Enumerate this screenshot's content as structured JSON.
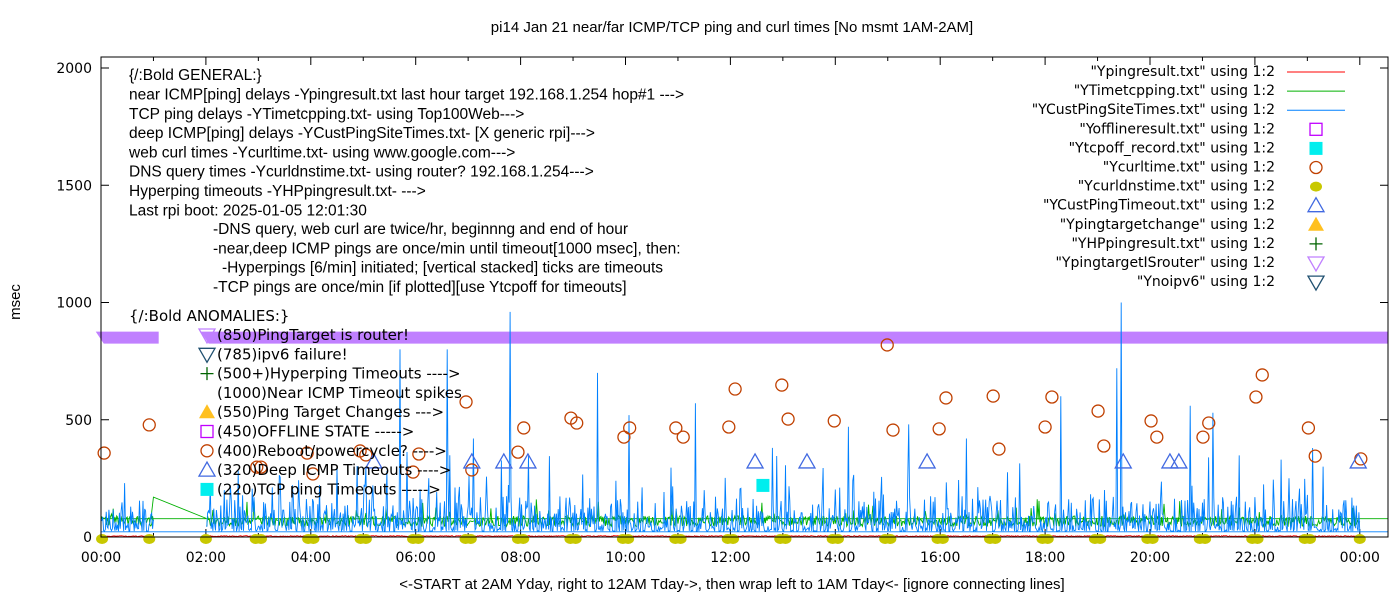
{
  "chart_data": {
    "type": "line",
    "title": "pi14 Jan 21  near/far ICMP/TCP ping and curl times [No msmt 1AM-2AM]",
    "xlabel": "<-START at 2AM Yday, right to 12AM Tday->, then wrap left to 1AM Tday<- [ignore connecting lines]",
    "ylabel": "msec",
    "xlim_hours": [
      0,
      24.53
    ],
    "ylim": [
      0,
      2000
    ],
    "y_ticks": [
      {
        "v": 0,
        "label": "0"
      },
      {
        "v": 500,
        "label": "500"
      },
      {
        "v": 1000,
        "label": "1000"
      },
      {
        "v": 1500,
        "label": "1500"
      },
      {
        "v": 2000,
        "label": "2000"
      }
    ],
    "x_ticks": [
      {
        "h": 0,
        "label": "00:00"
      },
      {
        "h": 2,
        "label": "02:00"
      },
      {
        "h": 4,
        "label": "04:00"
      },
      {
        "h": 6,
        "label": "06:00"
      },
      {
        "h": 8,
        "label": "08:00"
      },
      {
        "h": 10,
        "label": "10:00"
      },
      {
        "h": 12,
        "label": "12:00"
      },
      {
        "h": 14,
        "label": "14:00"
      },
      {
        "h": 16,
        "label": "16:00"
      },
      {
        "h": 18,
        "label": "18:00"
      },
      {
        "h": 20,
        "label": "20:00"
      },
      {
        "h": 22,
        "label": "22:00"
      },
      {
        "h": 24,
        "label": "00:00"
      }
    ],
    "legend": {
      "placement": "top-right",
      "entries": [
        {
          "label": "\"Ypingresult.txt\" using 1:2",
          "kind": "line",
          "color": "#ff0000"
        },
        {
          "label": "\"YTimetcpping.txt\" using 1:2",
          "kind": "line",
          "color": "#00b000"
        },
        {
          "label": "\"YCustPingSiteTimes.txt\" using 1:2",
          "kind": "line",
          "color": "#0080ff"
        },
        {
          "label": "\"Yofflineresult.txt\" using 1:2",
          "kind": "square-open",
          "color": "#c000ff"
        },
        {
          "label": "\"Ytcpoff_record.txt\" using 1:2",
          "kind": "square-filled",
          "color": "#00eeee"
        },
        {
          "label": "\"Ycurltime.txt\" using 1:2",
          "kind": "circle-open",
          "color": "#c04000"
        },
        {
          "label": "\"Ycurldnstime.txt\" using 1:2",
          "kind": "circle-filled",
          "color": "#c8c800"
        },
        {
          "label": "\"YCustPingTimeout.txt\" using 1:2",
          "kind": "triangle-up-open",
          "color": "#4169e1"
        },
        {
          "label": "\"Ypingtargetchange\" using 1:2",
          "kind": "triangle-up-filled",
          "color": "#ffc020"
        },
        {
          "label": "\"YHPpingresult.txt\" using 1:2",
          "kind": "plus",
          "color": "#006400"
        },
        {
          "label": "\"YpingtargetISrouter\" using 1:2",
          "kind": "triangle-down-open",
          "color": "#c080ff"
        },
        {
          "label": "\"Ynoipv6\" using 1:2",
          "kind": "triangle-down-open",
          "color": "#205070"
        }
      ]
    },
    "series": {
      "ycusttimes_spikes": [
        [
          0.45,
          230
        ],
        [
          2.35,
          200
        ],
        [
          4.5,
          300
        ],
        [
          5.7,
          800
        ],
        [
          6.6,
          800
        ],
        [
          7.1,
          420
        ],
        [
          7.8,
          960
        ],
        [
          9.47,
          700
        ],
        [
          10.07,
          520
        ],
        [
          11.33,
          570
        ],
        [
          12.8,
          380
        ],
        [
          14.25,
          470
        ],
        [
          15.4,
          480
        ],
        [
          16.5,
          420
        ],
        [
          18.3,
          600
        ],
        [
          19.37,
          720
        ],
        [
          19.45,
          1000
        ],
        [
          20.76,
          560
        ],
        [
          21.2,
          530
        ],
        [
          22.5,
          330
        ],
        [
          23.3,
          300
        ]
      ],
      "ycurltime": [
        [
          0.06,
          358
        ],
        [
          0.92,
          478
        ],
        [
          2.97,
          298
        ],
        [
          3.05,
          298
        ],
        [
          3.93,
          358
        ],
        [
          4.04,
          269
        ],
        [
          4.94,
          367
        ],
        [
          5.05,
          350
        ],
        [
          5.95,
          277
        ],
        [
          6.06,
          354
        ],
        [
          6.96,
          576
        ],
        [
          7.07,
          286
        ],
        [
          7.95,
          362
        ],
        [
          8.06,
          465
        ],
        [
          8.96,
          507
        ],
        [
          9.07,
          486
        ],
        [
          9.97,
          426
        ],
        [
          10.08,
          465
        ],
        [
          10.96,
          465
        ],
        [
          11.1,
          426
        ],
        [
          11.97,
          469
        ],
        [
          12.09,
          631
        ],
        [
          12.98,
          648
        ],
        [
          13.1,
          503
        ],
        [
          13.98,
          495
        ],
        [
          14.99,
          819
        ],
        [
          15.1,
          456
        ],
        [
          15.98,
          461
        ],
        [
          16.11,
          593
        ],
        [
          17.01,
          601
        ],
        [
          17.12,
          375
        ],
        [
          18.0,
          469
        ],
        [
          18.13,
          597
        ],
        [
          19.01,
          537
        ],
        [
          19.12,
          388
        ],
        [
          20.02,
          495
        ],
        [
          20.13,
          426
        ],
        [
          21.01,
          426
        ],
        [
          21.12,
          486
        ],
        [
          22.02,
          597
        ],
        [
          22.14,
          691
        ],
        [
          23.02,
          465
        ],
        [
          23.15,
          345
        ],
        [
          24.02,
          333
        ]
      ],
      "ycurldnstime_hours": [
        0.02,
        0.92,
        2.0,
        2.95,
        3.05,
        3.95,
        4.05,
        4.95,
        5.05,
        5.95,
        6.05,
        6.95,
        7.05,
        7.95,
        8.05,
        8.95,
        9.05,
        9.95,
        10.05,
        10.95,
        11.05,
        11.95,
        12.05,
        12.95,
        13.05,
        13.95,
        14.05,
        14.95,
        15.05,
        15.95,
        16.05,
        16.95,
        17.05,
        17.95,
        18.05,
        18.95,
        19.05,
        19.95,
        20.05,
        20.95,
        21.05,
        21.95,
        22.05,
        22.95,
        23.05,
        24.0
      ],
      "ycurldnstime_value": 0,
      "ycustpingtimeout": [
        [
          5.2,
          320
        ],
        [
          7.07,
          320
        ],
        [
          7.68,
          320
        ],
        [
          8.14,
          320
        ],
        [
          12.47,
          320
        ],
        [
          13.46,
          320
        ],
        [
          15.75,
          320
        ],
        [
          19.49,
          320
        ],
        [
          20.38,
          320
        ],
        [
          20.55,
          320
        ],
        [
          23.97,
          320
        ]
      ],
      "ytcpoff_record": [
        [
          12.62,
          220
        ]
      ],
      "ypingtargetisrouter_ranges": [
        [
          -0.1,
          1.1
        ],
        [
          1.9,
          24.53
        ]
      ],
      "ypingtargetisrouter_value": 850
    },
    "annotations": {
      "general_title": "{/:Bold GENERAL:}",
      "general_lines": [
        "near ICMP[ping] delays -Ypingresult.txt last hour target 192.168.1.254 hop#1 --->",
        "TCP ping delays -YTimetcpping.txt- using Top100Web--->",
        "deep ICMP[ping] delays -YCustPingSiteTimes.txt- [X generic rpi]--->",
        "web curl times -Ycurltime.txt- using www.google.com--->",
        "DNS query times -Ycurldnstime.txt- using router? 192.168.1.254--->",
        "Hyperping timeouts -YHPpingresult.txt- --->",
        "Last rpi boot: 2025-01-05 12:01:30"
      ],
      "notes": [
        "-DNS query, web curl are twice/hr, beginnng and end of hour",
        "-near,deep ICMP pings are once/min until timeout[1000 msec], then:",
        "-Hyperpings [6/min] initiated; [vertical stacked] ticks are timeouts",
        "-TCP pings are once/min [if plotted][use Ytcpoff for timeouts]"
      ],
      "anomalies_title": "{/:Bold ANOMALIES:}",
      "anomalies": [
        {
          "text": "(850)PingTarget is router!",
          "kind": "triangle-down-open",
          "color": "#c080ff"
        },
        {
          "text": "(785)ipv6 failure!",
          "kind": "triangle-down-open",
          "color": "#205070"
        },
        {
          "text": "(500+)Hyperping Timeouts ---->",
          "kind": "plus",
          "color": "#006400"
        },
        {
          "text": "(1000)Near ICMP Timeout spikes",
          "kind": "none",
          "color": "#000000"
        },
        {
          "text": "(550)Ping Target Changes --->",
          "kind": "triangle-up-filled",
          "color": "#ffc020"
        },
        {
          "text": "(450)OFFLINE STATE ----->",
          "kind": "square-open",
          "color": "#c000ff"
        },
        {
          "text": "(400)Reboot/powercycle? ---->",
          "kind": "circle-open",
          "color": "#c04000"
        },
        {
          "text": "(320)Deep ICMP Timeouts ---->",
          "kind": "triangle-up-open",
          "color": "#4169e1"
        },
        {
          "text": "(220)TCP ping Timeouts ----->",
          "kind": "square-filled",
          "color": "#00eeee"
        }
      ]
    }
  }
}
